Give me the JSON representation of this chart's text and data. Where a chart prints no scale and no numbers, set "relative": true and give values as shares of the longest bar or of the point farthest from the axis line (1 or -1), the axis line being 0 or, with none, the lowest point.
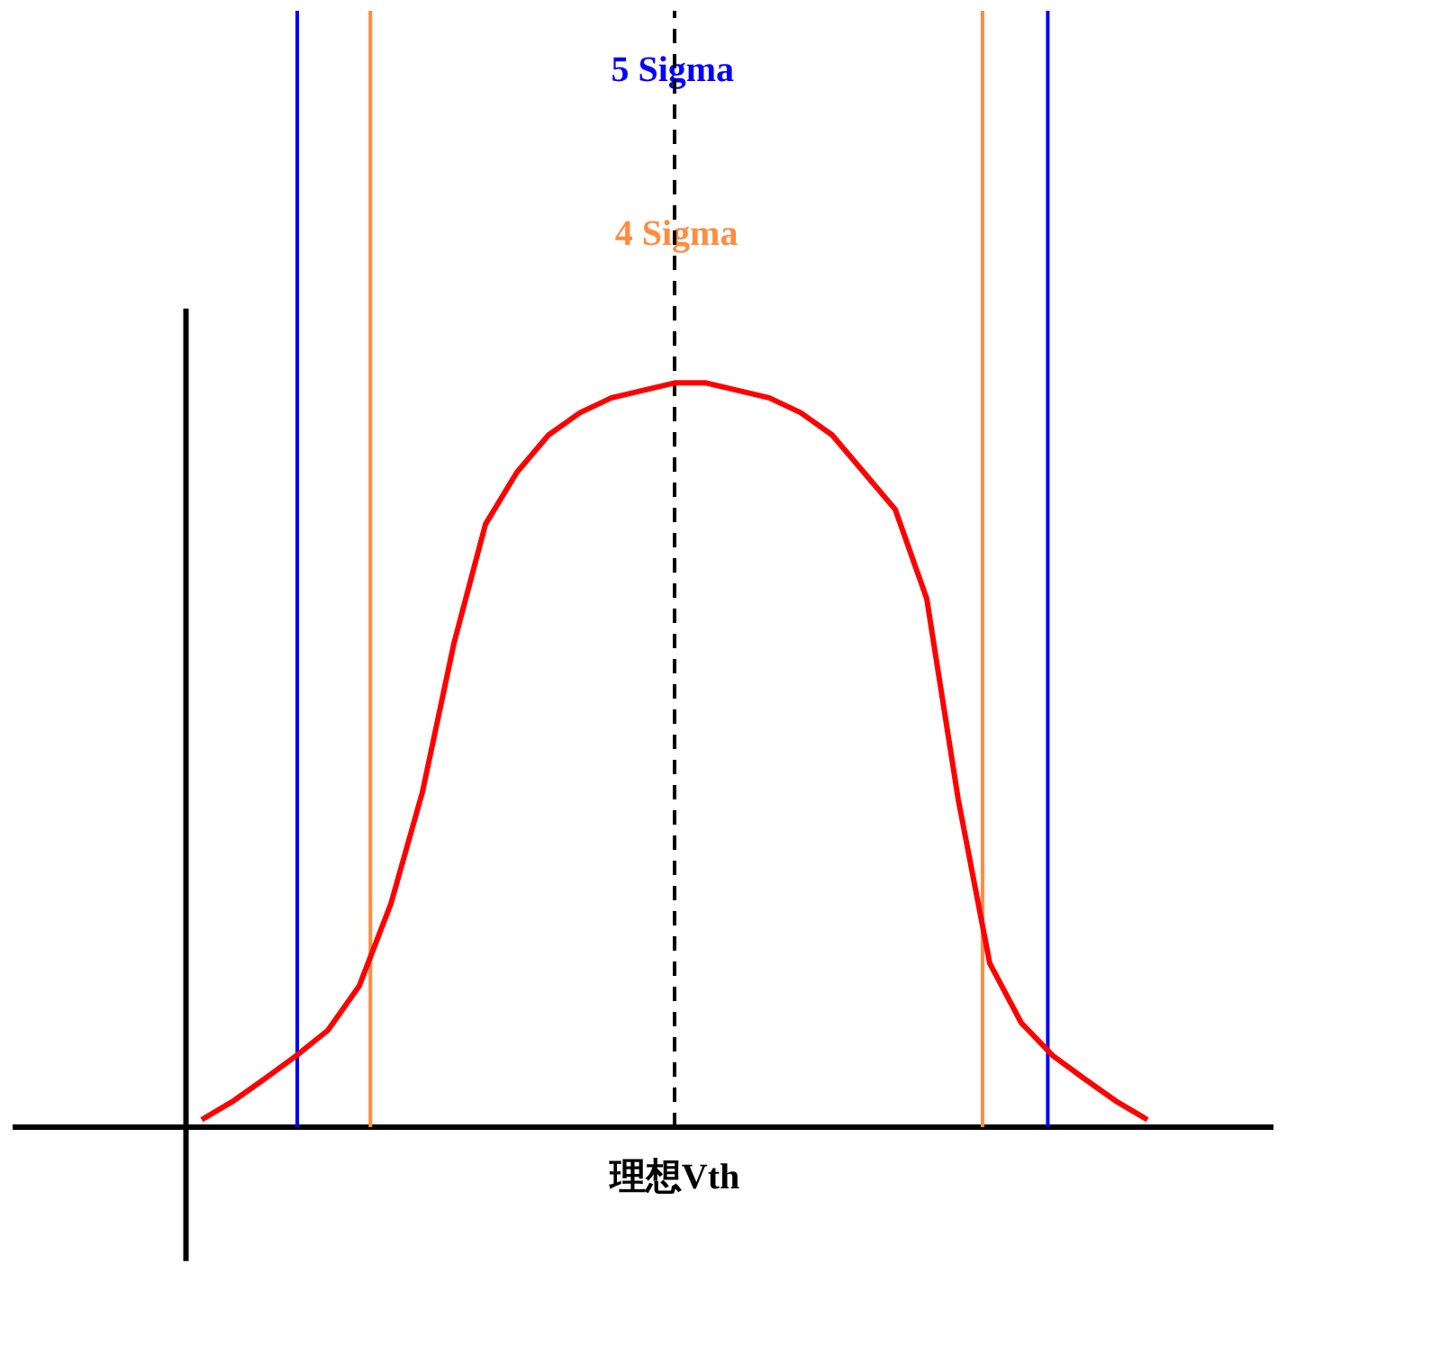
{
  "chart_data": {
    "type": "line",
    "relative": true,
    "categories": [
      null,
      null,
      null,
      null,
      null,
      null,
      null,
      null,
      null,
      null,
      null,
      null,
      null,
      null,
      null,
      null,
      null,
      null,
      null,
      null,
      null,
      null,
      null,
      null,
      null,
      null,
      null,
      null,
      null,
      null,
      null
    ],
    "series": [
      {
        "color": "#ff0000",
        "values": [
          0.01,
          0.035,
          0.065,
          0.096,
          0.13,
          0.19,
          0.3,
          0.45,
          0.65,
          0.81,
          0.88,
          0.93,
          0.96,
          0.98,
          0.99,
          1.0,
          1.0,
          0.99,
          0.98,
          0.96,
          0.93,
          0.88,
          0.83,
          0.71,
          0.44,
          0.22,
          0.14,
          0.096,
          0.065,
          0.035,
          0.01
        ]
      }
    ],
    "annotations": [
      "5 Sigma",
      "4 Sigma",
      "理想Vth"
    ],
    "grid": false,
    "line_style": "solid",
    "marker": "none"
  }
}
